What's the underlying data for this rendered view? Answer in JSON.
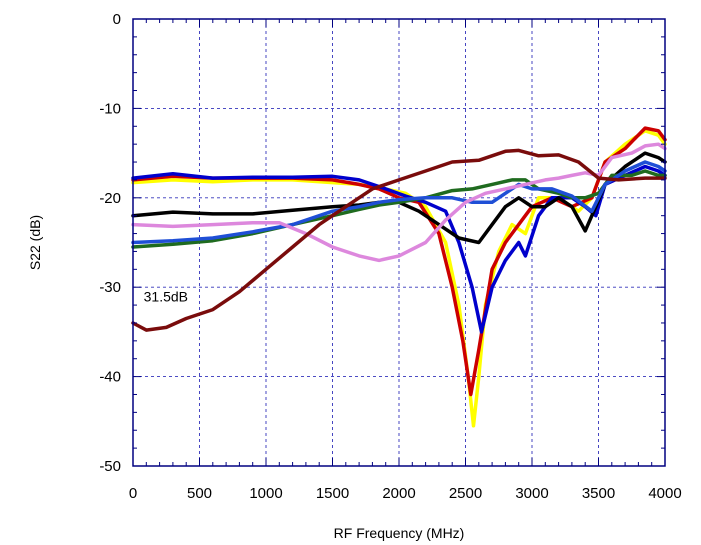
{
  "chart_data": {
    "type": "line",
    "title": "",
    "xlabel": "RF Frequency (MHz)",
    "ylabel": "S22 (dB)",
    "xlim": [
      0,
      4000
    ],
    "ylim": [
      -50,
      0
    ],
    "xticks": [
      0,
      500,
      1000,
      1500,
      2000,
      2500,
      3000,
      3500,
      4000
    ],
    "yticks": [
      0,
      -10,
      -20,
      -30,
      -40,
      -50
    ],
    "grid": true,
    "legend": "none",
    "annotations": [
      {
        "text": "31.5dB",
        "x": 80,
        "y": -31.6
      }
    ],
    "series": [
      {
        "color": "#ffff00",
        "points": [
          [
            0,
            -18.3
          ],
          [
            300,
            -18
          ],
          [
            600,
            -18.2
          ],
          [
            900,
            -18
          ],
          [
            1200,
            -18
          ],
          [
            1500,
            -18.3
          ],
          [
            1700,
            -18.5
          ],
          [
            1900,
            -19
          ],
          [
            2050,
            -19.5
          ],
          [
            2200,
            -21
          ],
          [
            2350,
            -25
          ],
          [
            2450,
            -32
          ],
          [
            2520,
            -40
          ],
          [
            2560,
            -45.5
          ],
          [
            2600,
            -40
          ],
          [
            2650,
            -32
          ],
          [
            2750,
            -26
          ],
          [
            2850,
            -23
          ],
          [
            2950,
            -24
          ],
          [
            3050,
            -20
          ],
          [
            3200,
            -20
          ],
          [
            3350,
            -21.5
          ],
          [
            3450,
            -20
          ],
          [
            3550,
            -16
          ],
          [
            3700,
            -14
          ],
          [
            3850,
            -12.5
          ],
          [
            3950,
            -13
          ],
          [
            4000,
            -14
          ]
        ]
      },
      {
        "color": "#cc0000",
        "points": [
          [
            0,
            -18
          ],
          [
            300,
            -17.6
          ],
          [
            600,
            -17.8
          ],
          [
            900,
            -17.8
          ],
          [
            1200,
            -17.8
          ],
          [
            1500,
            -18
          ],
          [
            1700,
            -18.5
          ],
          [
            1850,
            -19
          ],
          [
            2000,
            -20
          ],
          [
            2150,
            -20.5
          ],
          [
            2300,
            -24
          ],
          [
            2400,
            -30
          ],
          [
            2480,
            -36
          ],
          [
            2540,
            -42
          ],
          [
            2600,
            -37
          ],
          [
            2700,
            -28
          ],
          [
            2800,
            -25
          ],
          [
            2900,
            -23
          ],
          [
            3000,
            -21
          ],
          [
            3150,
            -20
          ],
          [
            3300,
            -21
          ],
          [
            3450,
            -20
          ],
          [
            3550,
            -16
          ],
          [
            3700,
            -14.5
          ],
          [
            3850,
            -12.2
          ],
          [
            3950,
            -12.5
          ],
          [
            4000,
            -13.5
          ]
        ]
      },
      {
        "color": "#0000cc",
        "points": [
          [
            0,
            -17.8
          ],
          [
            300,
            -17.3
          ],
          [
            600,
            -17.8
          ],
          [
            900,
            -17.7
          ],
          [
            1200,
            -17.7
          ],
          [
            1500,
            -17.6
          ],
          [
            1700,
            -18
          ],
          [
            1900,
            -19
          ],
          [
            2050,
            -19.8
          ],
          [
            2200,
            -20.5
          ],
          [
            2350,
            -21.5
          ],
          [
            2450,
            -25
          ],
          [
            2550,
            -30
          ],
          [
            2620,
            -35
          ],
          [
            2700,
            -30
          ],
          [
            2800,
            -27
          ],
          [
            2900,
            -25
          ],
          [
            2950,
            -26.5
          ],
          [
            3050,
            -22
          ],
          [
            3150,
            -20
          ],
          [
            3300,
            -20
          ],
          [
            3400,
            -21
          ],
          [
            3480,
            -22
          ],
          [
            3550,
            -18.5
          ],
          [
            3700,
            -17.5
          ],
          [
            3850,
            -16.5
          ],
          [
            3950,
            -17
          ],
          [
            4000,
            -17.5
          ]
        ]
      },
      {
        "color": "#000000",
        "points": [
          [
            0,
            -22
          ],
          [
            300,
            -21.6
          ],
          [
            600,
            -21.8
          ],
          [
            900,
            -21.8
          ],
          [
            1200,
            -21.4
          ],
          [
            1500,
            -21
          ],
          [
            1700,
            -20.8
          ],
          [
            1850,
            -20.5
          ],
          [
            2000,
            -20.5
          ],
          [
            2150,
            -21.5
          ],
          [
            2300,
            -23
          ],
          [
            2450,
            -24.5
          ],
          [
            2600,
            -25
          ],
          [
            2700,
            -23
          ],
          [
            2800,
            -21
          ],
          [
            2900,
            -20
          ],
          [
            3000,
            -21
          ],
          [
            3100,
            -21
          ],
          [
            3200,
            -20
          ],
          [
            3300,
            -21
          ],
          [
            3400,
            -23.7
          ],
          [
            3480,
            -21
          ],
          [
            3550,
            -18.5
          ],
          [
            3700,
            -16.5
          ],
          [
            3850,
            -15
          ],
          [
            3950,
            -15.5
          ],
          [
            4000,
            -16
          ]
        ]
      },
      {
        "color": "#1f6b1f",
        "points": [
          [
            0,
            -25.5
          ],
          [
            300,
            -25.2
          ],
          [
            600,
            -24.8
          ],
          [
            900,
            -24
          ],
          [
            1200,
            -23
          ],
          [
            1500,
            -22
          ],
          [
            1700,
            -21.3
          ],
          [
            1850,
            -20.8
          ],
          [
            2000,
            -20.5
          ],
          [
            2200,
            -20
          ],
          [
            2400,
            -19.2
          ],
          [
            2550,
            -19
          ],
          [
            2700,
            -18.5
          ],
          [
            2850,
            -18
          ],
          [
            2950,
            -18
          ],
          [
            3050,
            -19
          ],
          [
            3200,
            -19.5
          ],
          [
            3300,
            -20
          ],
          [
            3400,
            -20
          ],
          [
            3500,
            -19.5
          ],
          [
            3600,
            -17.5
          ],
          [
            3750,
            -17.5
          ],
          [
            3850,
            -17
          ],
          [
            3950,
            -17.5
          ],
          [
            4000,
            -17.5
          ]
        ]
      },
      {
        "color": "#1f4fd6",
        "points": [
          [
            0,
            -25
          ],
          [
            300,
            -24.8
          ],
          [
            600,
            -24.5
          ],
          [
            900,
            -23.8
          ],
          [
            1200,
            -23
          ],
          [
            1500,
            -21.5
          ],
          [
            1700,
            -21
          ],
          [
            1850,
            -20.5
          ],
          [
            2000,
            -20.2
          ],
          [
            2200,
            -20
          ],
          [
            2400,
            -20
          ],
          [
            2550,
            -20.5
          ],
          [
            2700,
            -20.5
          ],
          [
            2800,
            -19.5
          ],
          [
            2900,
            -18.5
          ],
          [
            3000,
            -19
          ],
          [
            3150,
            -19
          ],
          [
            3300,
            -19.8
          ],
          [
            3450,
            -21.5
          ],
          [
            3550,
            -18.5
          ],
          [
            3700,
            -17
          ],
          [
            3850,
            -16
          ],
          [
            3950,
            -16.5
          ],
          [
            4000,
            -17
          ]
        ]
      },
      {
        "color": "#dd88dd",
        "points": [
          [
            0,
            -23
          ],
          [
            300,
            -23.2
          ],
          [
            600,
            -23
          ],
          [
            900,
            -22.8
          ],
          [
            1100,
            -22.8
          ],
          [
            1300,
            -24
          ],
          [
            1500,
            -25.5
          ],
          [
            1700,
            -26.5
          ],
          [
            1850,
            -27
          ],
          [
            2000,
            -26.5
          ],
          [
            2200,
            -25
          ],
          [
            2350,
            -22.5
          ],
          [
            2500,
            -20.5
          ],
          [
            2650,
            -19.5
          ],
          [
            2800,
            -19
          ],
          [
            2950,
            -18.5
          ],
          [
            3100,
            -18
          ],
          [
            3200,
            -17.8
          ],
          [
            3300,
            -17.5
          ],
          [
            3400,
            -17.2
          ],
          [
            3500,
            -17.5
          ],
          [
            3600,
            -15.5
          ],
          [
            3750,
            -15
          ],
          [
            3850,
            -14.2
          ],
          [
            3950,
            -14
          ],
          [
            4000,
            -14.5
          ]
        ]
      },
      {
        "color": "#7a0c0c",
        "points": [
          [
            0,
            -34
          ],
          [
            100,
            -34.8
          ],
          [
            250,
            -34.5
          ],
          [
            400,
            -33.5
          ],
          [
            600,
            -32.5
          ],
          [
            800,
            -30.5
          ],
          [
            1000,
            -28
          ],
          [
            1200,
            -25.5
          ],
          [
            1400,
            -23
          ],
          [
            1600,
            -21
          ],
          [
            1800,
            -19
          ],
          [
            2000,
            -18
          ],
          [
            2200,
            -17
          ],
          [
            2400,
            -16
          ],
          [
            2600,
            -15.8
          ],
          [
            2800,
            -14.8
          ],
          [
            2900,
            -14.7
          ],
          [
            3050,
            -15.3
          ],
          [
            3200,
            -15.2
          ],
          [
            3350,
            -16
          ],
          [
            3500,
            -17.8
          ],
          [
            3650,
            -18
          ],
          [
            3850,
            -17.8
          ],
          [
            4000,
            -17.8
          ]
        ]
      }
    ]
  }
}
